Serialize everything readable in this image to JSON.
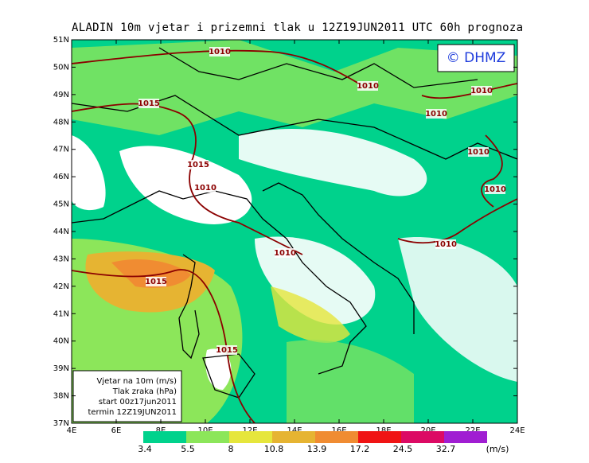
{
  "title": "ALADIN 10m vjetar i prizemni tlak u 12Z19JUN2011 UTC 60h prognoza",
  "copyright": "© DHMZ",
  "lat_labels": [
    "51N",
    "50N",
    "49N",
    "48N",
    "47N",
    "46N",
    "45N",
    "44N",
    "43N",
    "42N",
    "41N",
    "40N",
    "39N",
    "38N",
    "37N"
  ],
  "lon_labels": [
    "4E",
    "6E",
    "8E",
    "10E",
    "12E",
    "14E",
    "16E",
    "18E",
    "20E",
    "22E",
    "24E"
  ],
  "isobar_labels": [
    "1010",
    "1015",
    "1010",
    "1010",
    "1010",
    "1010",
    "1015",
    "1010",
    "1010",
    "1010",
    "1010",
    "1015",
    "1015"
  ],
  "legend_box": [
    "Vjetar na 10m (m/s)",
    "Tlak zraka (hPa)",
    "start 00z17jun2011",
    "termin 12Z19JUN2011"
  ],
  "colorbar": {
    "values": [
      3.4,
      5.5,
      8,
      10.8,
      13.9,
      17.2,
      24.5,
      32.7
    ],
    "unit": "(m/s)",
    "colors": [
      "#00d28c",
      "#8ce65a",
      "#e6e63c",
      "#e6b432",
      "#f08c32",
      "#f01414",
      "#dc0a64",
      "#a01ed2"
    ]
  }
}
